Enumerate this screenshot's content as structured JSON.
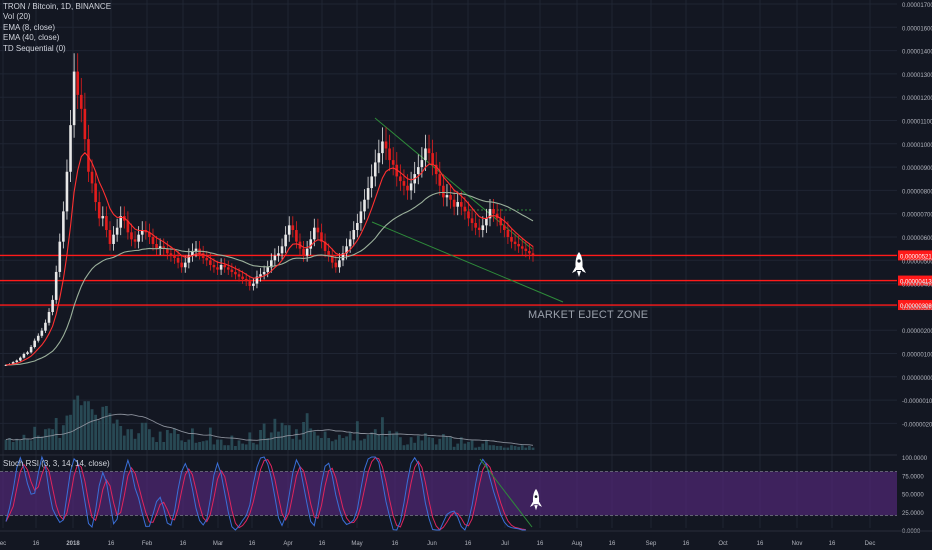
{
  "legend": {
    "symbol": "TRON / Bitcoin, 1D, BINANCE",
    "indicators": [
      "Vol (20)",
      "EMA (8, close)",
      "EMA (40, close)",
      "TD Sequential (0)"
    ]
  },
  "stoch": {
    "label": "Stoch RSI (3, 3, 14, 14, close)"
  },
  "annotations": {
    "zone_label": "MARKET EJECT ZONE",
    "rocket_icon": "rocket-icon"
  },
  "colors": {
    "background": "#131722",
    "grid": "#1f2533",
    "up": "#e8e8e8",
    "down": "#e31d1d",
    "ema_fast": "#ff3030",
    "ema_slow": "#9bb09b",
    "trendline": "#2e8b3a",
    "level": "#ff1a1a",
    "stoch_k": "#3a6fd8",
    "stoch_d": "#e0245e",
    "stoch_band": "#5b2a86"
  },
  "chart_data": {
    "type": "candlestick",
    "x_ticks": [
      "ec",
      "16",
      "2018",
      "16",
      "Feb",
      "16",
      "Mar",
      "16",
      "Apr",
      "16",
      "May",
      "16",
      "Jun",
      "16",
      "Jul",
      "16",
      "Aug",
      "16",
      "Sep",
      "16",
      "Oct",
      "16",
      "Nov",
      "16",
      "Dec"
    ],
    "y_ticks": [
      "0.00001700",
      "0.00001600",
      "0.00001400",
      "0.00001300",
      "0.00001200",
      "0.00001100",
      "0.00001000",
      "0.00000900",
      "0.00000800",
      "0.00000700",
      "0.00000600",
      "0.00000500",
      "0.00000400",
      "0.00000300",
      "0.00000200",
      "0.00000100",
      "0.00000000",
      "-0.00000100",
      "-0.00000200"
    ],
    "price_levels": [
      {
        "value": "0.00000521",
        "price": 5.21e-06
      },
      {
        "value": "0.00000413",
        "price": 4.13e-06
      },
      {
        "value": "0.00000308",
        "price": 3.08e-06
      }
    ],
    "stoch_ticks": [
      "100.0000",
      "75.0000",
      "50.0000",
      "25.0000",
      "0.0000"
    ],
    "stoch_band": [
      20,
      80
    ],
    "candles_close": [
      5.1e-07,
      5.5e-07,
      6.3e-07,
      7e-07,
      8.2e-07,
      9.8e-07,
      1.05e-06,
      1.28e-06,
      1.55e-06,
      1.76e-06,
      1.98e-06,
      2.32e-06,
      2.78e-06,
      3.3e-06,
      4.5e-06,
      5.8e-06,
      7.1e-06,
      8.8e-06,
      1.08e-05,
      1.31e-05,
      1.21e-05,
      1.15e-05,
      1.02e-05,
      8.8e-06,
      8.3e-06,
      7.5e-06,
      6.8e-06,
      6.9e-06,
      6.3e-06,
      5.7e-06,
      6.1e-06,
      6.4e-06,
      6.9e-06,
      6.7e-06,
      6.2e-06,
      5.9e-06,
      5.8e-06,
      6.1e-06,
      6.3e-06,
      6.2e-06,
      6e-06,
      5.7e-06,
      5.5e-06,
      5.6e-06,
      5.5e-06,
      5.3e-06,
      5.2e-06,
      5.1e-06,
      4.9e-06,
      4.7e-06,
      4.9e-06,
      5.2e-06,
      5.4e-06,
      5.5e-06,
      5.3e-06,
      5.1e-06,
      5e-06,
      4.8e-06,
      4.7e-06,
      4.6e-06,
      4.8e-06,
      4.7e-06,
      4.6e-06,
      4.5e-06,
      4.4e-06,
      4.3e-06,
      4.2e-06,
      4.1e-06,
      3.9e-06,
      4e-06,
      4.3e-06,
      4.4e-06,
      4.5e-06,
      4.7e-06,
      5e-06,
      5.2e-06,
      5.3e-06,
      5.6e-06,
      6.1e-06,
      6.5e-06,
      6.3e-06,
      5.8e-06,
      5.5e-06,
      5.2e-06,
      5.5e-06,
      5.9e-06,
      6.4e-06,
      6.2e-06,
      5.8e-06,
      5.4e-06,
      5.2e-06,
      4.9e-06,
      4.7e-06,
      5e-06,
      5.3e-06,
      5.6e-06,
      5.9e-06,
      6.3e-06,
      6.6e-06,
      7.1e-06,
      7.6e-06,
      8.1e-06,
      8.6e-06,
      9.2e-06,
      9.6e-06,
      1.01e-05,
      9.8e-06,
      9.3e-06,
      9.1e-06,
      8.6e-06,
      8.4e-06,
      8.2e-06,
      8e-06,
      8.3e-06,
      8.7e-06,
      9e-06,
      9.3e-06,
      9.8e-06,
      9.6e-06,
      9.1e-06,
      8.7e-06,
      8.2e-06,
      7.7e-06,
      7.8e-06,
      7.6e-06,
      7.3e-06,
      7.5e-06,
      7.3e-06,
      7.1e-06,
      6.8e-06,
      6.6e-06,
      6.4e-06,
      6.3e-06,
      6.5e-06,
      6.8e-06,
      7.2e-06,
      7e-06,
      6.8e-06,
      6.5e-06,
      6.3e-06,
      6e-06,
      5.8e-06,
      5.7e-06,
      5.6e-06,
      5.5e-06,
      5.4e-06,
      5.3e-06,
      5.2e-06
    ],
    "ema_fast": [
      5.1e-07,
      5.2e-07,
      5.5e-07,
      5.8e-07,
      6.3e-07,
      7.1e-07,
      7.9e-07,
      8.9e-07,
      1.04e-06,
      1.2e-06,
      1.37e-06,
      1.58e-06,
      1.85e-06,
      2.17e-06,
      2.69e-06,
      3.38e-06,
      4.2e-06,
      5.22e-06,
      6.46e-06,
      7.93e-06,
      8.86e-06,
      9.45e-06,
      9.62e-06,
      9.44e-06,
      9.18e-06,
      8.81e-06,
      8.36e-06,
      8.03e-06,
      7.65e-06,
      7.22e-06,
      6.97e-06,
      6.84e-06,
      6.85e-06,
      6.82e-06,
      6.68e-06,
      6.5e-06,
      6.34e-06,
      6.28e-06,
      6.28e-06,
      6.26e-06,
      6.2e-06,
      6.09e-06,
      5.96e-06,
      5.88e-06,
      5.79e-06,
      5.68e-06,
      5.57e-06,
      5.46e-06,
      5.34e-06,
      5.2e-06,
      5.13e-06,
      5.15e-06,
      5.2e-06,
      5.27e-06,
      5.28e-06,
      5.24e-06,
      5.19e-06,
      5.1e-06,
      5.01e-06,
      4.92e-06,
      4.89e-06,
      4.85e-06,
      4.79e-06,
      4.72e-06,
      4.65e-06,
      4.57e-06,
      4.49e-06,
      4.4e-06,
      4.29e-06,
      4.23e-06,
      4.25e-06,
      4.28e-06,
      4.33e-06,
      4.41e-06,
      4.54e-06,
      4.69e-06,
      4.82e-06,
      5e-06,
      5.24e-06,
      5.52e-06,
      5.69e-06,
      5.71e-06,
      5.66e-06,
      5.55e-06,
      5.54e-06,
      5.62e-06,
      5.79e-06,
      5.88e-06,
      5.86e-06,
      5.76e-06,
      5.63e-06,
      5.47e-06,
      5.3e-06,
      5.23e-06,
      5.25e-06,
      5.33e-06,
      5.46e-06,
      5.64e-06,
      5.85e-06,
      6.13e-06,
      6.46e-06,
      6.82e-06,
      7.22e-06,
      7.66e-06,
      8.09e-06,
      8.53e-06,
      8.81e-06,
      8.92e-06,
      8.96e-06,
      8.88e-06,
      8.77e-06,
      8.64e-06,
      8.5e-06,
      8.45e-06,
      8.5e-06,
      8.61e-06,
      8.76e-06,
      8.99e-06,
      9.12e-06,
      9.12e-06,
      9.02e-06,
      8.84e-06,
      8.58e-06,
      8.4e-06,
      8.22e-06,
      8.01e-06,
      7.9e-06,
      7.76e-06,
      7.61e-06,
      7.43e-06,
      7.24e-06,
      7.05e-06,
      6.88e-06,
      6.8e-06,
      6.8e-06,
      6.89e-06,
      6.92e-06,
      6.89e-06,
      6.8e-06,
      6.69e-06,
      6.54e-06,
      6.37e-06,
      6.22e-06,
      6.08e-06,
      5.95e-06,
      5.82e-06,
      5.71e-06,
      5.59e-06
    ],
    "ema_slow": [
      5.1e-07,
      5.1e-07,
      5.2e-07,
      5.3e-07,
      5.4e-07,
      5.7e-07,
      6e-07,
      6.4e-07,
      6.8e-07,
      7.5e-07,
      8.1e-07,
      8.9e-07,
      9.9e-07,
      1.1e-06,
      1.27e-06,
      1.49e-06,
      1.76e-06,
      2.1e-06,
      2.53e-06,
      3.05e-06,
      3.49e-06,
      3.89e-06,
      4.2e-06,
      4.43e-06,
      4.63e-06,
      4.78e-06,
      4.88e-06,
      4.98e-06,
      5.05e-06,
      5.08e-06,
      5.13e-06,
      5.2e-06,
      5.28e-06,
      5.35e-06,
      5.38e-06,
      5.4e-06,
      5.42e-06,
      5.43e-06,
      5.47e-06,
      5.49e-06,
      5.51e-06,
      5.5e-06,
      5.5e-06,
      5.51e-06,
      5.51e-06,
      5.5e-06,
      5.48e-06,
      5.47e-06,
      5.44e-06,
      5.4e-06,
      5.38e-06,
      5.37e-06,
      5.38e-06,
      5.38e-06,
      5.39e-06,
      5.38e-06,
      5.36e-06,
      5.32e-06,
      5.29e-06,
      5.24e-06,
      5.22e-06,
      5.19e-06,
      5.15e-06,
      5.11e-06,
      5.06e-06,
      5.01e-06,
      4.96e-06,
      4.89e-06,
      4.82e-06,
      4.77e-06,
      4.75e-06,
      4.73e-06,
      4.72e-06,
      4.72e-06,
      4.74e-06,
      4.76e-06,
      4.8e-06,
      4.84e-06,
      4.91e-06,
      5e-06,
      5.07e-06,
      5.09e-06,
      5.09e-06,
      5.08e-06,
      5.1e-06,
      5.13e-06,
      5.19e-06,
      5.22e-06,
      5.23e-06,
      5.21e-06,
      5.19e-06,
      5.16e-06,
      5.12e-06,
      5.11e-06,
      5.12e-06,
      5.14e-06,
      5.19e-06,
      5.24e-06,
      5.32e-06,
      5.4e-06,
      5.51e-06,
      5.65e-06,
      5.79e-06,
      5.95e-06,
      6.15e-06,
      6.34e-06,
      6.5e-06,
      6.63e-06,
      6.75e-06,
      6.85e-06,
      6.94e-06,
      7.02e-06,
      7.09e-06,
      7.17e-06,
      7.27e-06,
      7.38e-06,
      7.49e-06,
      7.63e-06,
      7.74e-06,
      7.82e-06,
      7.87e-06,
      7.91e-06,
      7.91e-06,
      7.91e-06,
      7.9e-06,
      7.87e-06,
      7.87e-06,
      7.86e-06,
      7.83e-06,
      7.78e-06,
      7.73e-06,
      7.67e-06,
      7.61e-06,
      7.56e-06,
      7.52e-06,
      7.51e-06,
      7.49e-06,
      7.45e-06,
      7.41e-06,
      7.35e-06,
      7.29e-06,
      7.21e-06,
      7.13e-06,
      7.04e-06,
      6.95e-06,
      6.87e-06,
      6.78e-06,
      6.69e-06
    ],
    "volume": [
      0.13,
      0.15,
      0.1,
      0.14,
      0.12,
      0.19,
      0.14,
      0.12,
      0.29,
      0.18,
      0.17,
      0.26,
      0.27,
      0.26,
      0.4,
      0.15,
      0.31,
      0.43,
      0.44,
      0.63,
      0.68,
      0.56,
      0.61,
      0.61,
      0.51,
      0.44,
      0.37,
      0.54,
      0.55,
      0.46,
      0.33,
      0.38,
      0.3,
      0.18,
      0.26,
      0.26,
      0.14,
      0.21,
      0.34,
      0.34,
      0.26,
      0.16,
      0.1,
      0.23,
      0.1,
      0.25,
      0.21,
      0.27,
      0.2,
      0.12,
      0.1,
      0.13,
      0.27,
      0.09,
      0.1,
      0.11,
      0.12,
      0.28,
      0.07,
      0.13,
      0.13,
      0.06,
      0.06,
      0.18,
      0.05,
      0.12,
      0.08,
      0.07,
      0.22,
      0.09,
      0.07,
      0.25,
      0.33,
      0.15,
      0.22,
      0.39,
      0.23,
      0.34,
      0.31,
      0.31,
      0.14,
      0.26,
      0.13,
      0.35,
      0.46,
      0.27,
      0.23,
      0.18,
      0.15,
      0.23,
      0.15,
      0.11,
      0.13,
      0.19,
      0.15,
      0.17,
      0.22,
      0.12,
      0.36,
      0.12,
      0.14,
      0.19,
      0.22,
      0.26,
      0.2,
      0.41,
      0.17,
      0.24,
      0.2,
      0.23,
      0.16,
      0.06,
      0.07,
      0.16,
      0.09,
      0.18,
      0.12,
      0.21,
      0.16,
      0.15,
      0.07,
      0.14,
      0.2,
      0.17,
      0.17,
      0.04,
      0.08,
      0.16,
      0.08,
      0.1,
      0.12,
      0.03,
      0.04,
      0.08,
      0.12,
      0.06,
      0.06,
      0.05,
      0.05,
      0.03,
      0.03,
      0.06,
      0.05,
      0.04,
      0.06,
      0.03,
      0.05,
      0.03
    ],
    "stoch_k": [
      11.6,
      30.7,
      55.1,
      85.3,
      99.0,
      84.9,
      63.4,
      49.1,
      50.4,
      77.9,
      100.0,
      88.3,
      53.9,
      29.0,
      18.6,
      10.4,
      13.8,
      46.4,
      80.6,
      97.4,
      92.3,
      68.8,
      39.0,
      8.9,
      4.1,
      26.8,
      60.8,
      78.8,
      65.9,
      37.1,
      8.5,
      14.8,
      48.1,
      79.0,
      95.5,
      80.5,
      57.2,
      43.6,
      23.0,
      5.0,
      5.1,
      21.6,
      39.1,
      44.8,
      30.0,
      9.4,
      6.7,
      25.4,
      55.9,
      80.3,
      91.0,
      79.5,
      56.5,
      29.8,
      12.9,
      7.0,
      14.7,
      42.1,
      75.1,
      91.6,
      77.3,
      51.2,
      24.4,
      4.5,
      0.0,
      5.2,
      13.2,
      19.4,
      34.3,
      63.5,
      86.1,
      98.6,
      100.0,
      90.6,
      71.9,
      45.0,
      16.5,
      6.2,
      18.9,
      47.7,
      78.3,
      96.0,
      86.4,
      60.5,
      35.4,
      11.7,
      6.0,
      31.3,
      63.8,
      87.4,
      91.5,
      74.5,
      47.9,
      28.3,
      13.5,
      7.5,
      9.6,
      13.8,
      27.7,
      56.3,
      83.1,
      97.2,
      100.0,
      100.0,
      92.8,
      66.4,
      38.9,
      18.3,
      0.4,
      0.0,
      11.9,
      36.5,
      67.0,
      91.4,
      99.1,
      91.0,
      66.6,
      36.8,
      15.8,
      0.7,
      0.0,
      0.0,
      11.1,
      21.5,
      24.5,
      25.9,
      17.5,
      4.6,
      0.0,
      12.4,
      33.9,
      62.8,
      87.4,
      96.9,
      89.9,
      71.0,
      52.8,
      37.5,
      21.5,
      10.8,
      5.3,
      3.2,
      2.4,
      1.5,
      0.0,
      0.0
    ],
    "stoch_d": [
      11.6,
      21.2,
      32.5,
      57.0,
      79.8,
      89.7,
      82.4,
      65.8,
      54.3,
      59.1,
      76.1,
      88.7,
      80.7,
      57.1,
      33.8,
      19.3,
      14.3,
      23.5,
      46.9,
      74.8,
      90.1,
      86.2,
      66.7,
      38.9,
      17.3,
      13.3,
      30.6,
      55.5,
      68.5,
      60.6,
      37.2,
      20.1,
      23.8,
      47.3,
      74.2,
      85.0,
      77.7,
      60.4,
      41.3,
      23.9,
      11.0,
      10.6,
      21.9,
      35.2,
      38.0,
      28.1,
      15.4,
      13.8,
      29.3,
      53.9,
      75.7,
      83.6,
      75.7,
      55.3,
      33.1,
      16.6,
      11.5,
      21.3,
      44.0,
      69.6,
      81.3,
      73.4,
      51.0,
      26.7,
      9.6,
      3.2,
      6.1,
      12.6,
      22.3,
      39.1,
      61.3,
      82.7,
      94.9,
      96.4,
      87.5,
      69.2,
      44.5,
      22.6,
      13.9,
      24.3,
      48.3,
      74.0,
      86.9,
      81.0,
      60.8,
      35.9,
      17.7,
      16.3,
      33.7,
      60.8,
      80.9,
      84.5,
      71.3,
      50.2,
      29.9,
      16.4,
      10.2,
      10.3,
      17.0,
      32.6,
      55.7,
      78.9,
      93.4,
      99.1,
      97.6,
      86.4,
      66.0,
      41.2,
      19.2,
      6.2,
      4.1,
      16.1,
      38.5,
      65.0,
      85.8,
      93.8,
      85.6,
      64.8,
      39.7,
      17.8,
      5.5,
      0.2,
      3.7,
      10.9,
      19.0,
      24.0,
      22.6,
      16.0,
      7.4,
      5.7,
      15.4,
      36.4,
      61.4,
      82.4,
      91.4,
      85.9,
      71.2,
      53.8,
      37.3,
      23.3,
      12.5,
      6.4,
      3.6,
      2.4,
      1.3,
      0.5
    ]
  }
}
